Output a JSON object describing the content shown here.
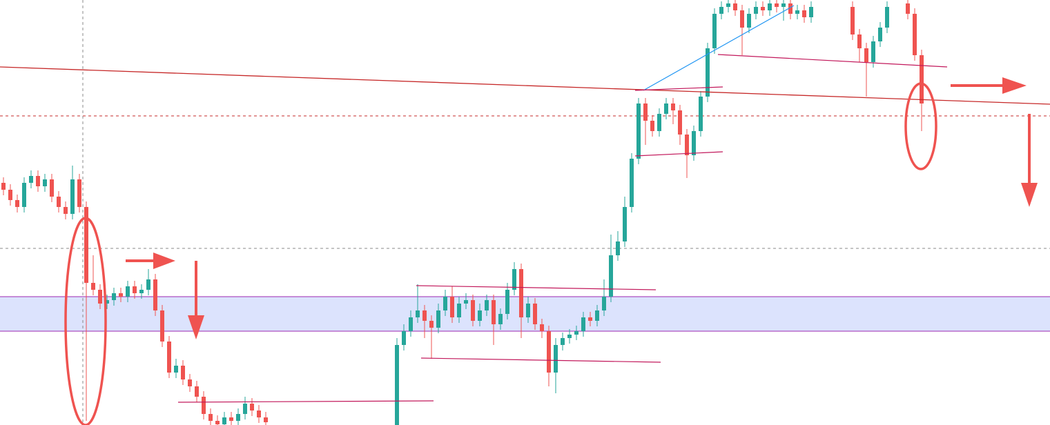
{
  "chart_data": {
    "type": "candlestick",
    "ylim": [
      0,
      616
    ],
    "up_color": "#26a69a",
    "down_color": "#ef5350",
    "open": [
      351,
      341,
      326,
      316,
      351,
      361,
      346,
      356,
      331,
      316,
      306,
      356,
      316,
      206,
      196,
      176,
      181,
      191,
      186,
      201,
      191,
      196,
      211,
      166,
      121,
      76,
      86,
      66,
      56,
      41,
      16,
      6,
      1,
      11,
      6,
      16,
      31,
      21,
      11,
      null,
      null,
      null,
      null,
      null,
      null,
      null,
      null,
      null,
      null,
      null,
      null,
      null,
      null,
      null,
      null,
      null,
      null,
      0,
      116,
      136,
      156,
      166,
      151,
      141,
      166,
      186,
      156,
      176,
      181,
      151,
      166,
      181,
      146,
      161,
      196,
      226,
      156,
      176,
      146,
      136,
      76,
      116,
      126,
      131,
      136,
      156,
      151,
      166,
      186,
      246,
      266,
      316,
      386,
      466,
      441,
      426,
      451,
      466,
      456,
      421,
      391,
      426,
      476,
      546,
      596,
      606,
      611,
      601,
      576,
      596,
      606,
      601,
      611,
      606,
      611,
      596,
      601,
      591,
      null,
      null,
      null,
      null,
      null,
      606,
      566,
      546,
      526,
      556,
      576,
      null,
      null,
      611,
      596,
      536
    ],
    "high": [
      359,
      349,
      334,
      359,
      369,
      369,
      364,
      364,
      339,
      324,
      376,
      364,
      324,
      246,
      204,
      189,
      199,
      199,
      209,
      209,
      204,
      226,
      219,
      174,
      129,
      96,
      94,
      74,
      64,
      49,
      24,
      14,
      19,
      19,
      24,
      41,
      39,
      29,
      19,
      null,
      null,
      null,
      null,
      null,
      null,
      null,
      null,
      null,
      null,
      null,
      null,
      null,
      null,
      null,
      null,
      null,
      null,
      126,
      146,
      166,
      204,
      174,
      159,
      176,
      196,
      201,
      186,
      191,
      189,
      176,
      189,
      189,
      169,
      206,
      236,
      234,
      186,
      184,
      154,
      144,
      126,
      134,
      139,
      144,
      164,
      164,
      174,
      211,
      276,
      281,
      331,
      394,
      474,
      474,
      449,
      459,
      474,
      474,
      464,
      429,
      434,
      484,
      554,
      604,
      614,
      616,
      616,
      609,
      604,
      614,
      614,
      616,
      616,
      616,
      616,
      609,
      609,
      614,
      null,
      null,
      null,
      null,
      null,
      614,
      574,
      554,
      564,
      584,
      614,
      null,
      null,
      616,
      604,
      544
    ],
    "low": [
      333,
      318,
      308,
      308,
      343,
      338,
      338,
      323,
      308,
      298,
      298,
      308,
      6,
      188,
      168,
      168,
      173,
      178,
      178,
      183,
      183,
      188,
      158,
      113,
      68,
      68,
      58,
      48,
      33,
      8,
      0,
      0,
      0,
      0,
      0,
      8,
      13,
      3,
      0,
      null,
      null,
      null,
      null,
      null,
      null,
      null,
      null,
      null,
      null,
      null,
      null,
      null,
      null,
      null,
      null,
      null,
      null,
      0,
      108,
      128,
      148,
      126,
      96,
      133,
      158,
      148,
      148,
      168,
      143,
      143,
      158,
      116,
      138,
      153,
      188,
      126,
      148,
      138,
      126,
      56,
      46,
      108,
      118,
      123,
      128,
      143,
      143,
      158,
      178,
      238,
      258,
      308,
      378,
      406,
      418,
      418,
      443,
      436,
      406,
      358,
      383,
      418,
      468,
      538,
      588,
      598,
      593,
      536,
      568,
      588,
      593,
      593,
      598,
      586,
      588,
      588,
      583,
      583,
      null,
      null,
      null,
      null,
      null,
      558,
      526,
      476,
      518,
      548,
      568,
      null,
      null,
      588,
      528,
      426
    ],
    "close": [
      341,
      326,
      316,
      351,
      361,
      346,
      356,
      331,
      316,
      306,
      356,
      316,
      206,
      196,
      176,
      181,
      191,
      186,
      201,
      191,
      196,
      211,
      166,
      121,
      76,
      86,
      66,
      56,
      41,
      16,
      6,
      1,
      11,
      6,
      16,
      31,
      21,
      11,
      4,
      null,
      null,
      null,
      null,
      null,
      null,
      null,
      null,
      null,
      null,
      null,
      null,
      null,
      null,
      null,
      null,
      null,
      null,
      116,
      136,
      156,
      166,
      151,
      141,
      166,
      186,
      156,
      176,
      181,
      151,
      166,
      181,
      146,
      161,
      196,
      226,
      156,
      176,
      146,
      136,
      76,
      116,
      126,
      131,
      136,
      156,
      151,
      166,
      186,
      246,
      266,
      316,
      386,
      466,
      441,
      426,
      451,
      466,
      456,
      421,
      391,
      426,
      476,
      546,
      596,
      606,
      611,
      601,
      576,
      596,
      606,
      601,
      611,
      606,
      611,
      596,
      601,
      591,
      606,
      null,
      null,
      null,
      null,
      null,
      566,
      546,
      526,
      556,
      576,
      606,
      null,
      null,
      596,
      536,
      466
    ]
  }
}
